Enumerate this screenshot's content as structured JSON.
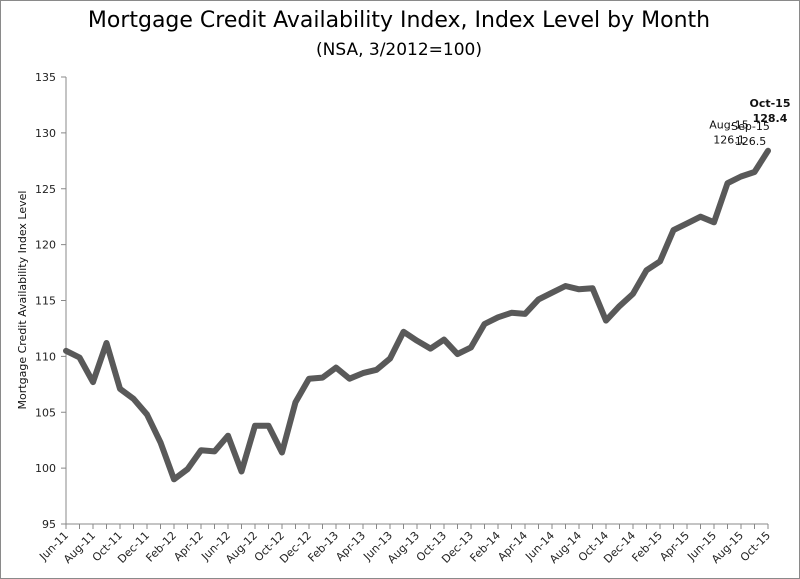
{
  "chart_data": {
    "type": "line",
    "title": "Mortgage Credit Availability Index, Index Level by Month",
    "subtitle": "(NSA, 3/2012=100)",
    "ylabel": "Mortgage Credit Availability Index Level",
    "xlabel": "",
    "ylim": [
      95,
      135
    ],
    "yticks": [
      95,
      100,
      105,
      110,
      115,
      120,
      125,
      130,
      135
    ],
    "grid": false,
    "x": [
      "Jun-11",
      "Jul-11",
      "Aug-11",
      "Sep-11",
      "Oct-11",
      "Nov-11",
      "Dec-11",
      "Jan-12",
      "Feb-12",
      "Mar-12",
      "Apr-12",
      "May-12",
      "Jun-12",
      "Jul-12",
      "Aug-12",
      "Sep-12",
      "Oct-12",
      "Nov-12",
      "Dec-12",
      "Jan-13",
      "Feb-13",
      "Mar-13",
      "Apr-13",
      "May-13",
      "Jun-13",
      "Jul-13",
      "Aug-13",
      "Sep-13",
      "Oct-13",
      "Nov-13",
      "Dec-13",
      "Jan-14",
      "Feb-14",
      "Mar-14",
      "Apr-14",
      "May-14",
      "Jun-14",
      "Jul-14",
      "Aug-14",
      "Sep-14",
      "Oct-14",
      "Nov-14",
      "Dec-14",
      "Jan-15",
      "Feb-15",
      "Mar-15",
      "Apr-15",
      "May-15",
      "Jun-15",
      "Jul-15",
      "Aug-15",
      "Sep-15",
      "Oct-15"
    ],
    "xtick_labels": [
      "Jun-11",
      "Aug-11",
      "Oct-11",
      "Dec-11",
      "Feb-12",
      "Apr-12",
      "Jun-12",
      "Aug-12",
      "Oct-12",
      "Dec-12",
      "Feb-13",
      "Apr-13",
      "Jun-13",
      "Aug-13",
      "Oct-13",
      "Dec-13",
      "Feb-14",
      "Apr-14",
      "Jun-14",
      "Aug-14",
      "Oct-14",
      "Dec-14",
      "Feb-15",
      "Apr-15",
      "Jun-15",
      "Aug-15",
      "Oct-15"
    ],
    "series": [
      {
        "color": "#595959",
        "values": [
          110.5,
          109.9,
          107.7,
          111.2,
          107.1,
          106.2,
          104.8,
          102.3,
          99.0,
          99.9,
          101.6,
          101.5,
          102.9,
          99.7,
          103.8,
          103.8,
          101.4,
          105.9,
          108.0,
          108.1,
          109.0,
          108.0,
          108.5,
          108.8,
          109.8,
          112.2,
          111.4,
          110.7,
          111.5,
          110.2,
          110.8,
          112.9,
          113.5,
          113.9,
          113.8,
          115.1,
          115.7,
          116.3,
          116.0,
          116.1,
          113.2,
          114.5,
          115.6,
          117.7,
          118.5,
          121.3,
          121.9,
          122.5,
          122.0,
          125.5,
          126.1,
          126.5,
          128.4
        ]
      }
    ],
    "annotations": [
      {
        "x": "Aug-15",
        "label": "Aug-15",
        "value": "126.1"
      },
      {
        "x": "Sep-15",
        "label": "Sep-15",
        "value": "126.5"
      },
      {
        "x": "Oct-15",
        "label": "Oct-15",
        "value": "128.4"
      }
    ]
  }
}
